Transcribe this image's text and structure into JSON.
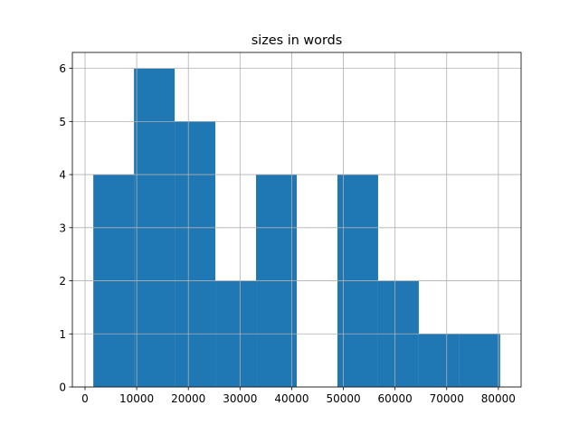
{
  "chart_data": {
    "type": "histogram",
    "title": "sizes in words",
    "bins": [
      1600,
      9475,
      17350,
      25225,
      33100,
      40975,
      48850,
      56725,
      64600,
      72475,
      80350
    ],
    "counts": [
      4,
      6,
      5,
      2,
      4,
      0,
      4,
      2,
      1,
      1
    ],
    "color": "#1f77b4",
    "xlim": [
      -2450,
      84400
    ],
    "xticks": [
      0,
      10000,
      20000,
      30000,
      40000,
      50000,
      60000,
      70000,
      80000
    ],
    "ylim": [
      0,
      6.3
    ],
    "yticks": [
      0,
      1,
      2,
      3,
      4,
      5,
      6
    ],
    "grid": true
  }
}
